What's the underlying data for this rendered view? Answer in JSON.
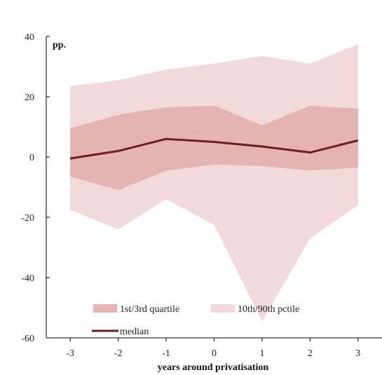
{
  "chart_data": {
    "type": "area",
    "unit_label": "pp.",
    "xlabel": "years around privatisation",
    "ylabel": "",
    "x": [
      -3,
      -2,
      -1,
      0,
      1,
      2,
      3
    ],
    "x_tick_labels": [
      "-3",
      "-2",
      "-1",
      "0",
      "1",
      "2",
      "3"
    ],
    "xlim": [
      -3.5,
      3.5
    ],
    "ylim": [
      -60,
      40
    ],
    "y_ticks": [
      -60,
      -40,
      -20,
      0,
      20,
      40
    ],
    "y_tick_labels": [
      "-60",
      "-40",
      "-20",
      "0",
      "20",
      "40"
    ],
    "grid": false,
    "legend_position": "bottom-left",
    "series": [
      {
        "name": "10th/90th pctile",
        "kind": "band",
        "lower": [
          -17.5,
          -24,
          -14,
          -22.5,
          -54.5,
          -27,
          -16
        ],
        "upper": [
          23.5,
          25.5,
          29,
          31,
          33.5,
          31,
          37.5
        ],
        "color": "#f2dada"
      },
      {
        "name": "1st/3rd quartile",
        "kind": "band",
        "lower": [
          -6.5,
          -11,
          -4.5,
          -2.5,
          -3,
          -4.5,
          -3.5
        ],
        "upper": [
          9.5,
          14,
          16.5,
          17,
          10.5,
          17,
          16
        ],
        "color": "#e6b3b3"
      },
      {
        "name": "median",
        "kind": "line",
        "values": [
          -0.5,
          2,
          6,
          5,
          3.5,
          1.5,
          5.5
        ],
        "color": "#6b1f1f"
      }
    ]
  }
}
